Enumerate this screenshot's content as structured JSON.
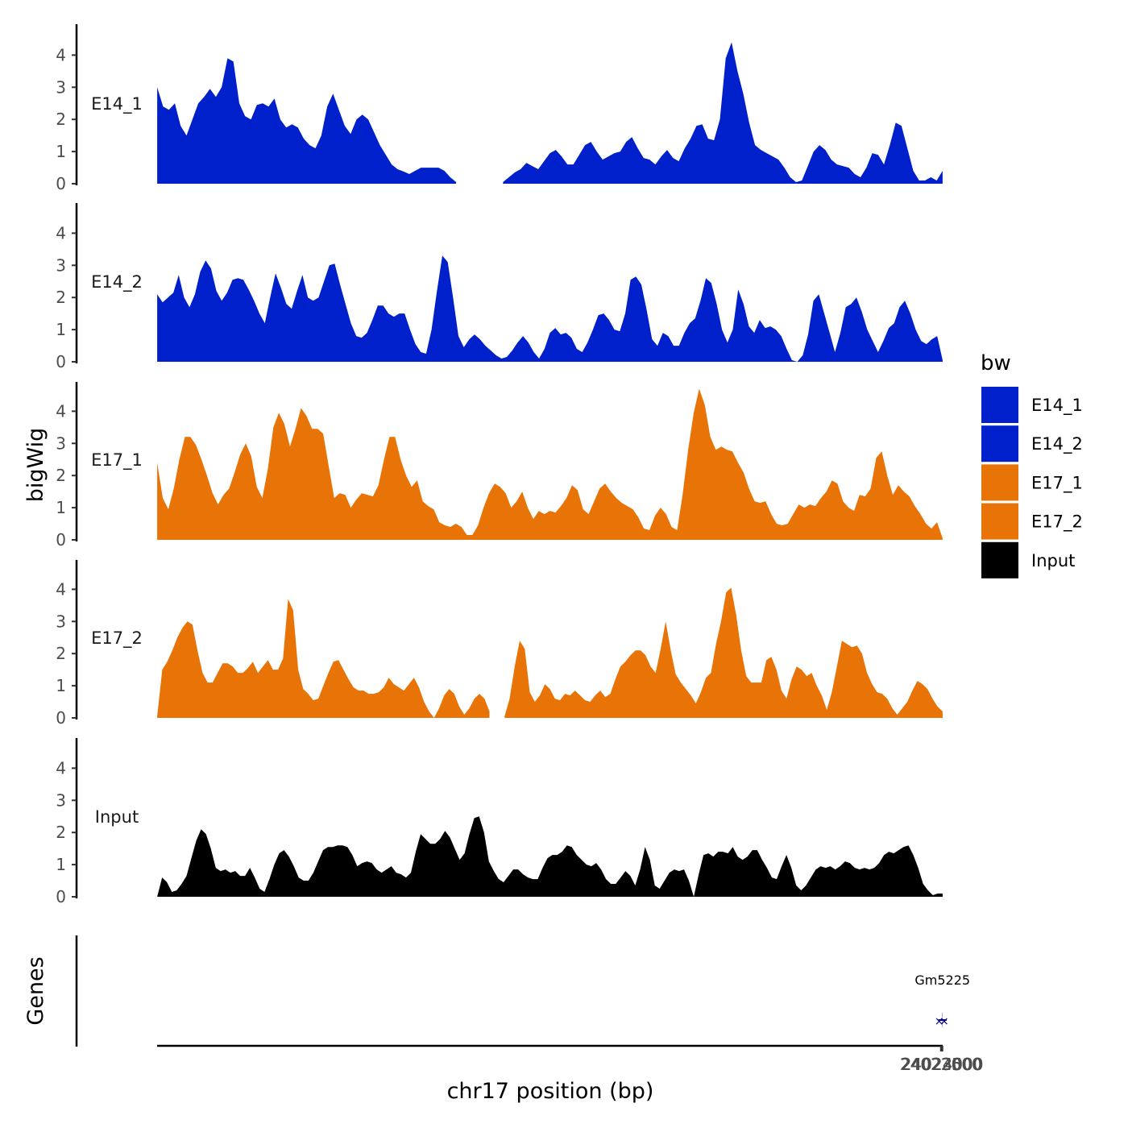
{
  "chart_data": {
    "type": "area",
    "ylabel": "bigWig",
    "xlabel": "chr17 position (bp)",
    "genes_label": "Genes",
    "xlim": [
      23021740,
      24024300
    ],
    "data_range": [
      23021875,
      24024165
    ],
    "ylim": [
      0,
      4.9
    ],
    "y_ticks": [
      0,
      1,
      2,
      3,
      4
    ],
    "x_ticks": [
      24022000,
      24022500,
      24023000,
      24023500,
      24024000
    ],
    "x_tick_labels": [
      "24022000",
      "24022500",
      "24023000",
      "24023500",
      "24024000"
    ],
    "legend": {
      "title": "bw",
      "entries": [
        {
          "name": "E14_1",
          "color": "#0020CC"
        },
        {
          "name": "E14_2",
          "color": "#0020CC"
        },
        {
          "name": "E17_1",
          "color": "#E87306"
        },
        {
          "name": "E17_2",
          "color": "#E87306"
        },
        {
          "name": "Input",
          "color": "#000000"
        }
      ]
    },
    "series": [
      {
        "name": "E14_1",
        "color": "#0020CC",
        "y": [
          3.0,
          2.4,
          2.3,
          2.5,
          1.8,
          1.5,
          2.0,
          2.5,
          2.7,
          2.95,
          2.7,
          3.0,
          3.9,
          3.8,
          2.5,
          2.1,
          2.0,
          2.45,
          2.5,
          2.4,
          2.65,
          2.0,
          1.75,
          1.85,
          1.75,
          1.4,
          1.2,
          1.1,
          1.5,
          2.4,
          2.8,
          2.3,
          1.8,
          1.55,
          2.0,
          2.15,
          2.0,
          1.6,
          1.2,
          0.9,
          0.6,
          0.45,
          0.38,
          0.3,
          0.4,
          0.5,
          0.5,
          0.5,
          0.5,
          0.4,
          0.2,
          0.05,
          null,
          null,
          null,
          null,
          null,
          null,
          null,
          0.05,
          0.2,
          0.35,
          0.45,
          0.65,
          0.55,
          0.45,
          0.7,
          0.95,
          1.05,
          0.85,
          0.6,
          0.6,
          0.9,
          1.2,
          1.3,
          1.0,
          0.75,
          0.85,
          0.95,
          1.0,
          1.3,
          1.45,
          1.1,
          0.8,
          0.75,
          0.6,
          0.85,
          1.05,
          0.8,
          0.7,
          1.1,
          1.4,
          1.8,
          1.85,
          1.4,
          1.35,
          2.0,
          3.9,
          4.4,
          3.5,
          2.8,
          1.9,
          1.2,
          1.05,
          0.95,
          0.85,
          0.75,
          0.5,
          0.2,
          0.05,
          0.1,
          0.55,
          1.0,
          1.2,
          1.05,
          0.75,
          0.6,
          0.55,
          0.5,
          0.3,
          0.2,
          0.5,
          0.95,
          0.9,
          0.6,
          1.2,
          1.9,
          1.8,
          1.1,
          0.4,
          0.1,
          0.1,
          0.2,
          0.1,
          0.4
        ]
      },
      {
        "name": "E14_2",
        "color": "#0020CC",
        "y": [
          2.1,
          1.85,
          2.0,
          2.15,
          2.7,
          2.0,
          1.7,
          2.1,
          2.8,
          3.15,
          2.9,
          2.2,
          1.9,
          2.15,
          2.55,
          2.6,
          2.55,
          2.25,
          1.9,
          1.5,
          1.2,
          2.0,
          2.75,
          2.3,
          1.8,
          1.65,
          2.2,
          2.7,
          2.0,
          1.9,
          2.0,
          2.5,
          3.0,
          3.05,
          2.4,
          1.8,
          1.2,
          0.8,
          0.75,
          0.9,
          1.3,
          1.75,
          1.75,
          1.5,
          1.4,
          1.5,
          1.5,
          1.0,
          0.55,
          0.3,
          0.25,
          1.0,
          2.2,
          3.3,
          3.1,
          2.0,
          0.8,
          0.45,
          0.7,
          0.85,
          0.7,
          0.5,
          0.35,
          0.2,
          0.1,
          0.15,
          0.35,
          0.6,
          0.8,
          0.6,
          0.3,
          0.1,
          0.4,
          0.9,
          1.05,
          0.85,
          0.9,
          0.75,
          0.4,
          0.3,
          0.6,
          1.0,
          1.45,
          1.5,
          1.3,
          1.0,
          0.95,
          1.5,
          2.55,
          2.65,
          2.4,
          1.6,
          0.7,
          0.5,
          0.9,
          0.8,
          0.5,
          0.5,
          0.9,
          1.2,
          1.35,
          1.9,
          2.6,
          2.45,
          1.8,
          1.0,
          0.6,
          1.0,
          2.25,
          1.8,
          1.1,
          0.9,
          1.3,
          1.05,
          1.1,
          1.0,
          0.8,
          0.4,
          0.05,
          0.0,
          0.2,
          0.85,
          1.9,
          2.1,
          1.5,
          0.9,
          0.3,
          0.9,
          1.7,
          1.8,
          2.0,
          1.55,
          1.0,
          0.65,
          0.3,
          0.65,
          1.05,
          1.2,
          1.7,
          1.9,
          1.5,
          1.0,
          0.65,
          0.55,
          0.7,
          0.8,
          0.05
        ]
      },
      {
        "name": "E17_1",
        "color": "#E87306",
        "y": [
          2.4,
          1.3,
          0.95,
          1.6,
          2.5,
          3.2,
          3.2,
          2.95,
          2.5,
          2.0,
          1.45,
          1.1,
          1.4,
          1.6,
          2.1,
          2.65,
          3.0,
          2.6,
          1.65,
          1.3,
          2.2,
          3.5,
          3.95,
          3.6,
          2.9,
          3.45,
          4.1,
          3.85,
          3.45,
          3.45,
          3.3,
          2.3,
          1.3,
          1.45,
          1.4,
          1.0,
          1.25,
          1.45,
          1.4,
          1.35,
          1.7,
          2.5,
          3.2,
          3.2,
          2.5,
          2.0,
          1.65,
          1.85,
          1.2,
          1.05,
          0.95,
          0.55,
          0.45,
          0.4,
          0.5,
          0.4,
          0.15,
          0.15,
          0.45,
          1.0,
          1.45,
          1.75,
          1.65,
          1.45,
          1.0,
          1.2,
          1.5,
          1.0,
          0.65,
          0.9,
          0.8,
          0.9,
          0.85,
          1.05,
          1.3,
          1.7,
          1.55,
          0.95,
          0.8,
          1.2,
          1.6,
          1.75,
          1.5,
          1.3,
          1.15,
          1.05,
          0.95,
          0.7,
          0.35,
          0.3,
          0.75,
          1.0,
          0.8,
          0.4,
          0.3,
          1.4,
          2.8,
          3.95,
          4.7,
          4.2,
          3.2,
          2.8,
          2.9,
          2.8,
          2.75,
          2.4,
          2.1,
          1.6,
          1.2,
          1.15,
          1.2,
          0.8,
          0.5,
          0.45,
          0.5,
          0.8,
          1.1,
          1.0,
          1.1,
          1.05,
          1.3,
          1.5,
          1.85,
          1.75,
          1.2,
          1.0,
          0.9,
          1.4,
          1.35,
          1.6,
          2.55,
          2.75,
          2.0,
          1.4,
          1.7,
          1.5,
          1.35,
          1.05,
          0.8,
          0.5,
          0.35,
          0.55,
          0.05
        ]
      },
      {
        "name": "E17_2",
        "color": "#E87306",
        "y": [
          0.05,
          1.5,
          1.75,
          2.1,
          2.5,
          2.8,
          3.0,
          2.9,
          2.1,
          1.4,
          1.1,
          1.1,
          1.4,
          1.7,
          1.7,
          1.6,
          1.4,
          1.4,
          1.55,
          1.75,
          1.4,
          1.6,
          1.8,
          1.5,
          1.5,
          1.85,
          3.7,
          3.35,
          1.5,
          0.9,
          0.75,
          0.55,
          0.6,
          1.0,
          1.4,
          1.75,
          1.8,
          1.5,
          1.2,
          0.95,
          0.85,
          0.85,
          0.75,
          0.75,
          0.8,
          0.95,
          1.25,
          1.05,
          0.95,
          0.85,
          1.05,
          1.25,
          0.95,
          0.5,
          0.2,
          0.0,
          0.3,
          0.7,
          0.9,
          0.75,
          0.35,
          0.1,
          0.3,
          0.6,
          0.75,
          0.6,
          0.2,
          null,
          null,
          0.05,
          0.6,
          1.6,
          2.4,
          2.15,
          0.8,
          0.5,
          0.7,
          1.05,
          0.9,
          0.6,
          0.55,
          0.75,
          0.7,
          0.85,
          0.7,
          0.55,
          0.5,
          0.7,
          0.85,
          0.65,
          0.75,
          1.2,
          1.6,
          1.75,
          1.95,
          2.1,
          2.1,
          1.95,
          1.6,
          1.4,
          2.15,
          3.0,
          2.1,
          1.35,
          1.1,
          0.9,
          0.7,
          0.45,
          0.8,
          1.25,
          1.4,
          2.3,
          3.0,
          3.9,
          4.05,
          3.2,
          2.1,
          1.3,
          1.1,
          1.1,
          1.1,
          1.8,
          1.9,
          1.5,
          0.85,
          0.6,
          1.2,
          1.6,
          1.5,
          1.3,
          1.4,
          1.0,
          0.7,
          0.25,
          0.8,
          1.6,
          2.4,
          2.3,
          2.2,
          2.25,
          2.0,
          1.4,
          1.05,
          0.8,
          0.75,
          0.6,
          0.3,
          0.1,
          0.3,
          0.5,
          0.85,
          1.15,
          1.05,
          0.9,
          0.6,
          0.35,
          0.2
        ]
      },
      {
        "name": "Input",
        "color": "#000000",
        "y": [
          0.0,
          0.6,
          0.45,
          0.15,
          0.2,
          0.4,
          0.65,
          1.2,
          1.75,
          2.1,
          1.95,
          1.5,
          0.9,
          0.8,
          0.85,
          0.75,
          0.8,
          0.65,
          0.65,
          0.9,
          0.6,
          0.25,
          0.15,
          0.55,
          1.0,
          1.35,
          1.45,
          1.25,
          0.95,
          0.6,
          0.5,
          0.5,
          0.75,
          1.1,
          1.45,
          1.55,
          1.55,
          1.6,
          1.6,
          1.55,
          1.3,
          0.95,
          1.05,
          1.1,
          1.05,
          0.85,
          0.75,
          0.85,
          0.95,
          0.75,
          0.7,
          0.6,
          0.75,
          1.4,
          1.95,
          1.8,
          1.65,
          1.65,
          1.8,
          2.05,
          1.85,
          1.5,
          1.15,
          1.35,
          1.95,
          2.45,
          2.5,
          2.0,
          1.1,
          0.8,
          0.55,
          0.45,
          0.65,
          0.85,
          0.85,
          0.7,
          0.6,
          0.55,
          0.55,
          0.9,
          1.2,
          1.3,
          1.3,
          1.4,
          1.6,
          1.55,
          1.3,
          1.15,
          1.0,
          0.95,
          1.05,
          0.85,
          0.55,
          0.4,
          0.4,
          0.6,
          0.8,
          0.65,
          0.35,
          0.85,
          1.55,
          1.15,
          0.35,
          0.25,
          0.5,
          0.75,
          0.85,
          0.8,
          0.85,
          0.5,
          0.0,
          0.7,
          1.3,
          1.35,
          1.25,
          1.4,
          1.4,
          1.35,
          1.55,
          1.25,
          1.15,
          1.25,
          1.45,
          1.45,
          1.15,
          0.9,
          0.6,
          0.55,
          0.95,
          1.3,
          0.9,
          0.35,
          0.2,
          0.35,
          0.6,
          0.85,
          0.95,
          0.9,
          0.95,
          0.85,
          0.95,
          1.1,
          1.05,
          0.9,
          0.85,
          0.9,
          0.85,
          0.9,
          1.05,
          1.3,
          1.4,
          1.35,
          1.45,
          1.55,
          1.6,
          1.3,
          0.9,
          0.4,
          0.2,
          0.05,
          0.1,
          0.1
        ]
      }
    ],
    "genes": [
      {
        "name": "Gm5225",
        "start": 24023860,
        "end": 24024180,
        "color": "#00008B"
      }
    ]
  }
}
